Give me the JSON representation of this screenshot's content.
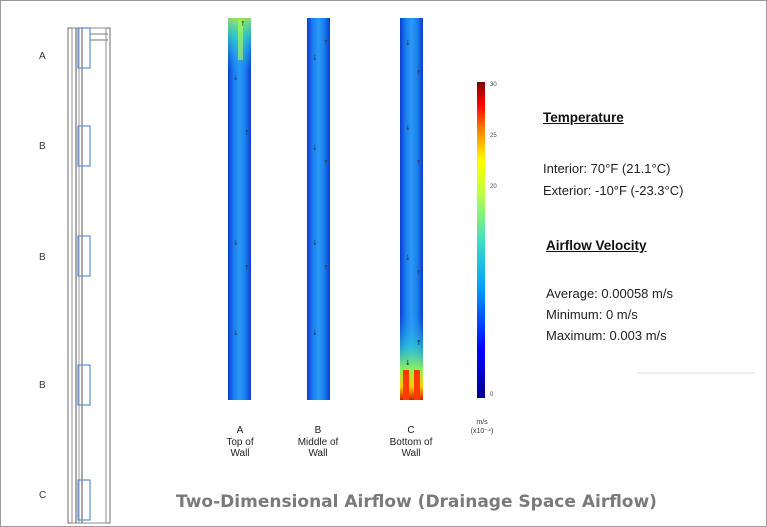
{
  "section_letters": [
    "A",
    "B",
    "B",
    "B",
    "C"
  ],
  "columns": [
    {
      "letter": "A",
      "caption_line1": "Top of",
      "caption_line2": "Wall"
    },
    {
      "letter": "B",
      "caption_line1": "Middle of",
      "caption_line2": "Wall"
    },
    {
      "letter": "C",
      "caption_line1": "Bottom of",
      "caption_line2": "Wall"
    }
  ],
  "colorbar": {
    "ticks": [
      "30",
      "25",
      "20",
      "0"
    ],
    "unit_line1": "m/s",
    "unit_line2": "(x10⁻⁴)",
    "colors": [
      "#00008f",
      "#0000ff",
      "#00c0ff",
      "#40ffbf",
      "#ffff00",
      "#ff8000",
      "#ff0000",
      "#800000"
    ]
  },
  "temperature": {
    "heading": "Temperature",
    "interior": "Interior: 70°F (21.1°C)",
    "exterior": "Exterior: -10°F (-23.3°C)"
  },
  "airflow": {
    "heading": "Airflow Velocity",
    "average": "Average:  0.00058 m/s",
    "minimum": "Minimum: 0 m/s",
    "maximum": "Maximum: 0.003 m/s"
  },
  "title": "Two-Dimensional Airflow (Drainage Space Airflow)"
}
